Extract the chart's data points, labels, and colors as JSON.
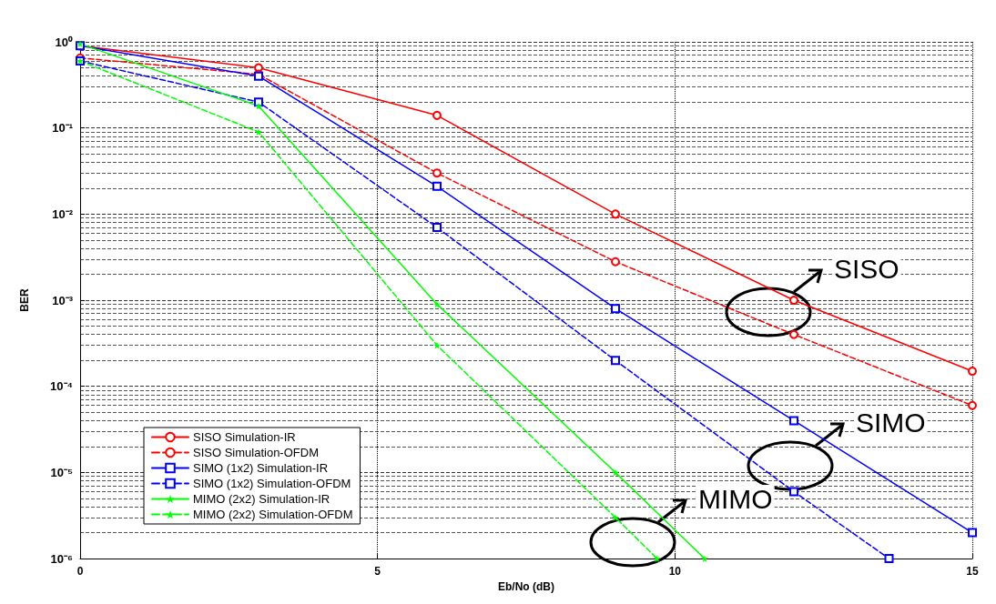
{
  "chart_data": {
    "type": "line",
    "xlabel": "Eb/No (dB)",
    "ylabel": "BER",
    "log": "y",
    "grid": true,
    "legend": "bottom left",
    "xlim": [
      0,
      15
    ],
    "xticks": [
      0,
      5,
      10,
      15
    ],
    "ylim": [
      1e-06,
      1
    ],
    "yticks": [
      {
        "value": 1e-06,
        "label": "10⁻⁶"
      },
      {
        "value": 1e-05,
        "label": "10⁻⁵"
      },
      {
        "value": 0.0001,
        "label": "10⁻⁴"
      },
      {
        "value": 0.001,
        "label": "10⁻³"
      },
      {
        "value": 0.01,
        "label": "10⁻²"
      },
      {
        "value": 0.1,
        "label": "10⁻¹"
      },
      {
        "value": 1,
        "label": "10⁰"
      }
    ],
    "series": [
      {
        "name": "SISO Simulation-IR",
        "color": "#ff0000",
        "marker": "circle",
        "line_style": "solid",
        "x": [
          0,
          3,
          6,
          9,
          12,
          15
        ],
        "values": [
          0.9,
          0.5,
          0.14,
          0.01,
          0.001,
          0.00015
        ]
      },
      {
        "name": "SISO Simulation-OFDM",
        "color": "#ff0000",
        "marker": "circle",
        "line_style": "dashed",
        "x": [
          0,
          3,
          6,
          9,
          12,
          15
        ],
        "values": [
          0.65,
          0.42,
          0.03,
          0.0028,
          0.0004,
          6e-05
        ]
      },
      {
        "name": "SIMO (1x2) Simulation-IR",
        "color": "#0000ff",
        "marker": "square",
        "line_style": "solid",
        "x": [
          0,
          3,
          6,
          9,
          12,
          15
        ],
        "values": [
          0.9,
          0.4,
          0.021,
          0.0008,
          4e-05,
          2e-06
        ]
      },
      {
        "name": "SIMO (1x2) Simulation-OFDM",
        "color": "#0000ff",
        "marker": "square",
        "line_style": "dashed",
        "x": [
          0,
          3,
          6,
          9,
          12,
          13.6
        ],
        "values": [
          0.6,
          0.2,
          0.007,
          0.0002,
          6e-06,
          1e-06
        ]
      },
      {
        "name": "MIMO (2x2) Simulation-IR",
        "color": "#00ff00",
        "marker": "star",
        "line_style": "solid",
        "x": [
          0,
          3,
          6,
          9,
          10.5
        ],
        "values": [
          0.95,
          0.18,
          0.0009,
          1e-05,
          1e-06
        ]
      },
      {
        "name": "MIMO (2x2) Simulation-OFDM",
        "color": "#00ff00",
        "marker": "star",
        "line_style": "dashed",
        "x": [
          0,
          3,
          6,
          9,
          9.7
        ],
        "values": [
          0.6,
          0.09,
          0.0003,
          3e-06,
          1e-06
        ]
      }
    ],
    "annotations": [
      "SISO",
      "SIMO",
      "MIMO"
    ]
  }
}
